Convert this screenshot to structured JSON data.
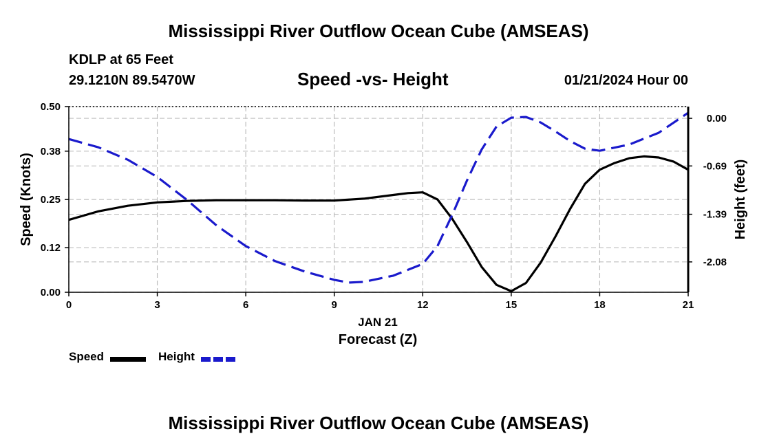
{
  "header": {
    "title": "Mississippi River Outflow Ocean Cube (AMSEAS)",
    "station": "KDLP at 65 Feet",
    "coords": "29.1210N  89.5470W",
    "chart_title": "Speed -vs- Height",
    "date": "01/21/2024 Hour 00"
  },
  "footer": {
    "title": "Mississippi River Outflow Ocean Cube (AMSEAS)"
  },
  "legend": {
    "speed_label": "Speed",
    "height_label": "Height"
  },
  "colors": {
    "speed": "#000000",
    "height": "#1a1acc",
    "grid": "#bdbdbd"
  },
  "chart_data": {
    "type": "line",
    "title": "Speed -vs- Height",
    "xlabel": "Forecast (Z)",
    "xlabel_date": "JAN 21",
    "ylabel": "Speed (Knots)",
    "y2label": "Height (feet)",
    "xlim": [
      0,
      21
    ],
    "ylim": [
      0,
      0.5
    ],
    "y2lim": [
      -2.52,
      0.17
    ],
    "x_ticks": [
      0,
      3,
      6,
      9,
      12,
      15,
      18,
      21
    ],
    "y_ticks": [
      "0.00",
      "0.12",
      "0.25",
      "0.38",
      "0.50"
    ],
    "y2_ticks": [
      "0.00",
      "-0.69",
      "-1.39",
      "-2.08"
    ],
    "series": [
      {
        "name": "Speed",
        "axis": "left",
        "x": [
          0,
          1,
          2,
          3,
          4,
          5,
          6,
          7,
          8,
          9,
          10,
          11,
          11.5,
          12,
          12.5,
          13,
          13.5,
          14,
          14.5,
          15,
          15.5,
          16,
          16.5,
          17,
          17.5,
          18,
          18.5,
          19,
          19.5,
          20,
          20.5,
          21
        ],
        "y": [
          0.195,
          0.218,
          0.233,
          0.242,
          0.246,
          0.248,
          0.248,
          0.248,
          0.247,
          0.247,
          0.252,
          0.262,
          0.267,
          0.269,
          0.25,
          0.198,
          0.135,
          0.068,
          0.02,
          0.003,
          0.025,
          0.08,
          0.15,
          0.225,
          0.292,
          0.33,
          0.348,
          0.361,
          0.366,
          0.363,
          0.352,
          0.33
        ]
      },
      {
        "name": "Height",
        "axis": "right",
        "x": [
          0,
          1,
          2,
          3,
          4,
          5,
          6,
          7,
          8,
          9,
          9.5,
          10,
          11,
          12,
          12.5,
          13,
          13.5,
          14,
          14.5,
          15,
          15.5,
          16,
          16.5,
          17,
          17.5,
          18,
          19,
          20,
          21
        ],
        "y": [
          -0.3,
          -0.42,
          -0.6,
          -0.85,
          -1.18,
          -1.55,
          -1.85,
          -2.07,
          -2.22,
          -2.34,
          -2.38,
          -2.37,
          -2.28,
          -2.11,
          -1.85,
          -1.4,
          -0.9,
          -0.45,
          -0.12,
          0.01,
          0.02,
          -0.06,
          -0.19,
          -0.33,
          -0.44,
          -0.47,
          -0.38,
          -0.21,
          0.08
        ]
      }
    ]
  }
}
